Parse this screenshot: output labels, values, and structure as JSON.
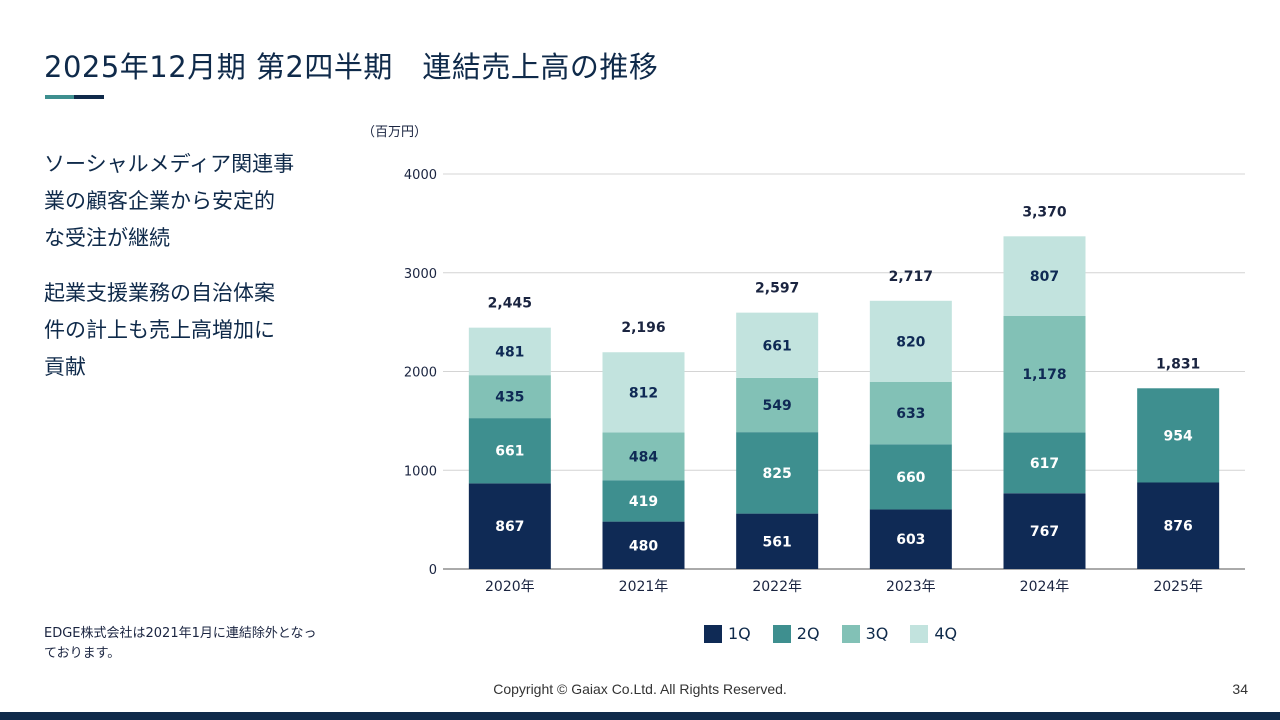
{
  "page": {
    "title": "2025年12月期 第2四半期　連結売上高の推移",
    "bullets": [
      "ソーシャルメディア関連事\n業の顧客企業から安定的\nな受注が継続",
      "起業支援業務の自治体案\n件の計上も売上高増加に\n貢献"
    ],
    "footnote": "EDGE株式会社は2021年1月に連結除外となっ\nております。",
    "unit_label": "（百万円）",
    "copyright": "Copyright © Gaiax Co.Ltd. All Rights Reserved.",
    "page_number": "34"
  },
  "chart_data": {
    "type": "bar",
    "stacked": true,
    "categories": [
      "2020年",
      "2021年",
      "2022年",
      "2023年",
      "2024年",
      "2025年"
    ],
    "series": [
      {
        "name": "1Q",
        "color": "#0f2a55",
        "values": [
          867,
          480,
          561,
          603,
          767,
          876
        ]
      },
      {
        "name": "2Q",
        "color": "#3e8f8f",
        "values": [
          661,
          419,
          825,
          660,
          617,
          954
        ]
      },
      {
        "name": "3Q",
        "color": "#82c1b6",
        "values": [
          435,
          484,
          549,
          633,
          1178,
          null
        ]
      },
      {
        "name": "4Q",
        "color": "#c2e3de",
        "values": [
          481,
          812,
          661,
          820,
          807,
          null
        ]
      }
    ],
    "totals": [
      "2,445",
      "2,196",
      "2,597",
      "2,717",
      "3,370",
      "1,831"
    ],
    "value_labels": [
      [
        "867",
        "480",
        "561",
        "603",
        "767",
        "876"
      ],
      [
        "661",
        "419",
        "825",
        "660",
        "617",
        "954"
      ],
      [
        "435",
        "484",
        "549",
        "633",
        "1,178",
        ""
      ],
      [
        "481",
        "812",
        "661",
        "820",
        "807",
        ""
      ]
    ],
    "label_colors": [
      "#ffffff",
      "#ffffff",
      "#0f2a55",
      "#0f2a55"
    ],
    "yticks": [
      "0",
      "1000",
      "2000",
      "3000",
      "4000"
    ],
    "ylim": [
      0,
      4000
    ],
    "grid": true,
    "legend_position": "bottom"
  }
}
